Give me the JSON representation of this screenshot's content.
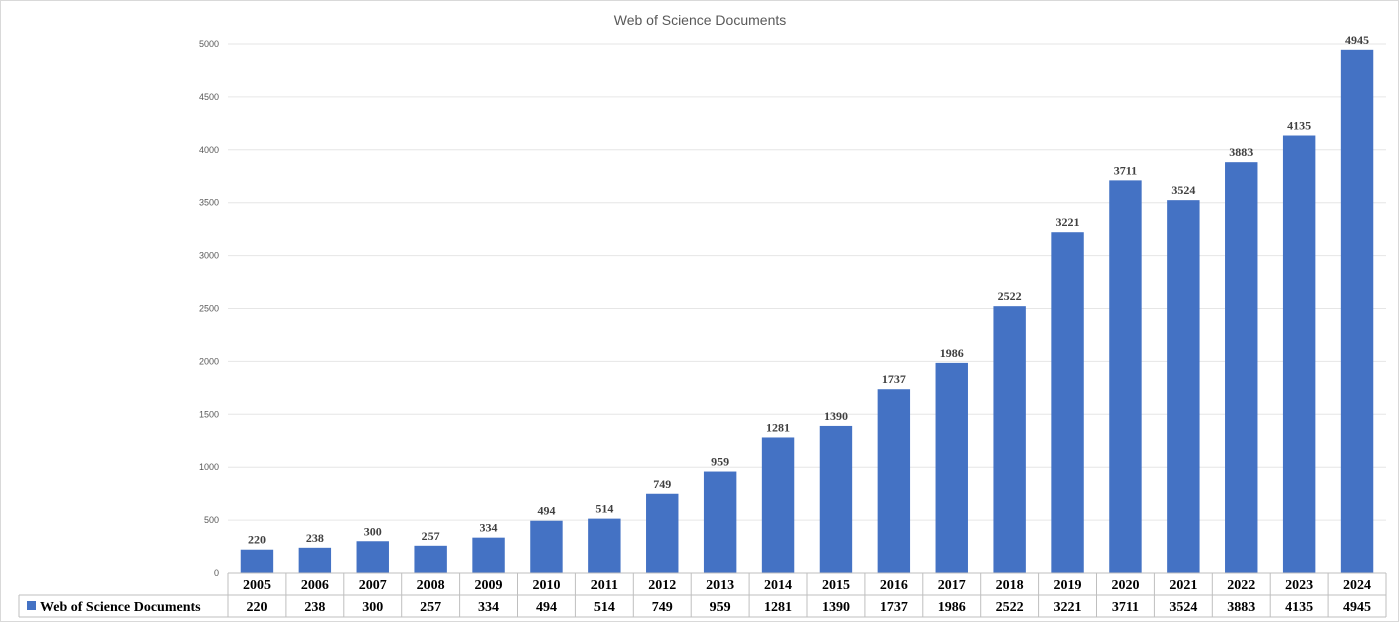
{
  "chart_data": {
    "type": "bar",
    "title": "Web of Science Documents",
    "categories": [
      "2005",
      "2006",
      "2007",
      "2008",
      "2009",
      "2010",
      "2011",
      "2012",
      "2013",
      "2014",
      "2015",
      "2016",
      "2017",
      "2018",
      "2019",
      "2020",
      "2021",
      "2022",
      "2023",
      "2024"
    ],
    "series": [
      {
        "name": "Web of Science Documents",
        "values": [
          220,
          238,
          300,
          257,
          334,
          494,
          514,
          749,
          959,
          1281,
          1390,
          1737,
          1986,
          2522,
          3221,
          3711,
          3524,
          3883,
          4135,
          4945
        ],
        "color": "#4472C4"
      }
    ],
    "ylim": [
      0,
      5000
    ],
    "yticks": [
      0,
      500,
      1000,
      1500,
      2000,
      2500,
      3000,
      3500,
      4000,
      4500,
      5000
    ],
    "grid": true,
    "data_labels": true,
    "data_table": true,
    "legend": "data-table"
  }
}
